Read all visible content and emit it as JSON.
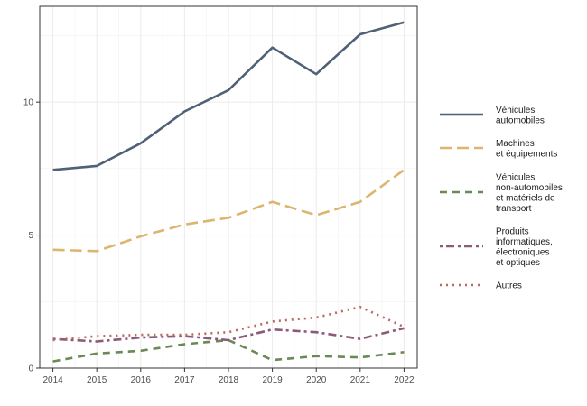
{
  "chart_data": {
    "type": "line",
    "x": [
      2014,
      2015,
      2016,
      2017,
      2018,
      2019,
      2020,
      2021,
      2022
    ],
    "xlim": [
      2013.7,
      2022.3
    ],
    "ylim": [
      0,
      13.6
    ],
    "y_ticks": [
      0,
      5,
      10
    ],
    "grid": true,
    "legend_position": "right",
    "series": [
      {
        "name": "Véhicules automobiles",
        "label_lines": [
          "Véhicules",
          "automobiles"
        ],
        "color": "#4f6177",
        "dash": "solid",
        "values": [
          7.45,
          7.6,
          8.45,
          9.65,
          10.45,
          12.05,
          11.05,
          12.55,
          13.0
        ]
      },
      {
        "name": "Machines et équipements",
        "label_lines": [
          "Machines",
          "et équipements"
        ],
        "color": "#dcb56e",
        "dash": "longdash",
        "values": [
          4.45,
          4.4,
          4.95,
          5.4,
          5.65,
          6.25,
          5.75,
          6.25,
          7.45
        ]
      },
      {
        "name": "Véhicules non-automobiles et matériels de transport",
        "label_lines": [
          "Véhicules",
          "non-automobiles",
          "et matériels de",
          "transport"
        ],
        "color": "#6a8a55",
        "dash": "dashed",
        "values": [
          0.25,
          0.55,
          0.65,
          0.9,
          1.05,
          0.3,
          0.45,
          0.4,
          0.6
        ]
      },
      {
        "name": "Produits informatiques, électroniques et optiques",
        "label_lines": [
          "Produits",
          "informatiques,",
          "électroniques",
          "et optiques"
        ],
        "color": "#8a5a78",
        "dash": "dotdash",
        "values": [
          1.1,
          1.0,
          1.15,
          1.2,
          1.05,
          1.45,
          1.35,
          1.1,
          1.5
        ]
      },
      {
        "name": "Autres",
        "label_lines": [
          "Autres"
        ],
        "color": "#b86a5e",
        "dash": "dotted",
        "values": [
          1.05,
          1.2,
          1.25,
          1.25,
          1.35,
          1.75,
          1.9,
          2.3,
          1.55
        ]
      }
    ]
  }
}
